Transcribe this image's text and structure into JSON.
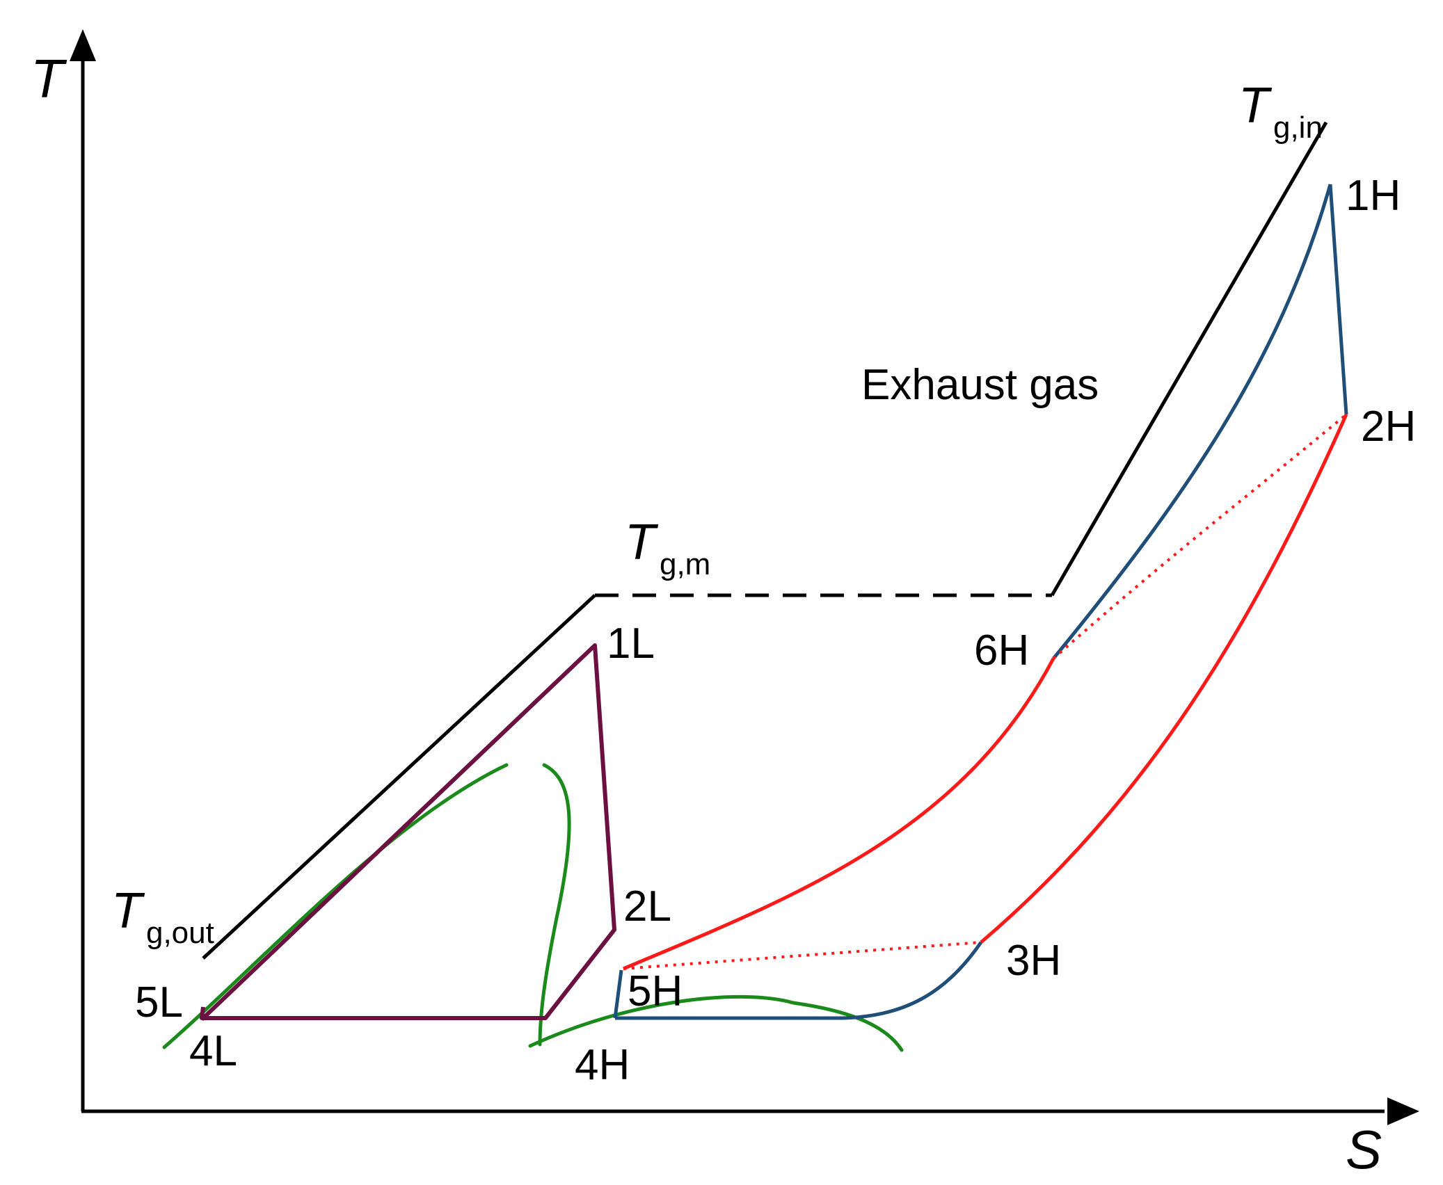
{
  "axes": {
    "y_label": "T",
    "x_label": "S"
  },
  "gas": {
    "t_in_main": "T",
    "t_in_sub": "g,in",
    "t_m_main": "T",
    "t_m_sub": "g,m",
    "t_out_main": "T",
    "t_out_sub": "g,out",
    "exhaust_label": "Exhaust gas"
  },
  "points": {
    "p1H": "1H",
    "p2H": "2H",
    "p3H": "3H",
    "p4H": "4H",
    "p5H": "5H",
    "p6H": "6H",
    "p1L": "1L",
    "p2L": "2L",
    "p4L": "4L",
    "p5L": "5L"
  },
  "colors": {
    "axis": "#000000",
    "gas": "#000000",
    "low_cycle": "#6b1040",
    "saturation_dome": "#1a8a1a",
    "high_cycle": "#1f4e79",
    "high_sensible": "#ff1a1a"
  }
}
